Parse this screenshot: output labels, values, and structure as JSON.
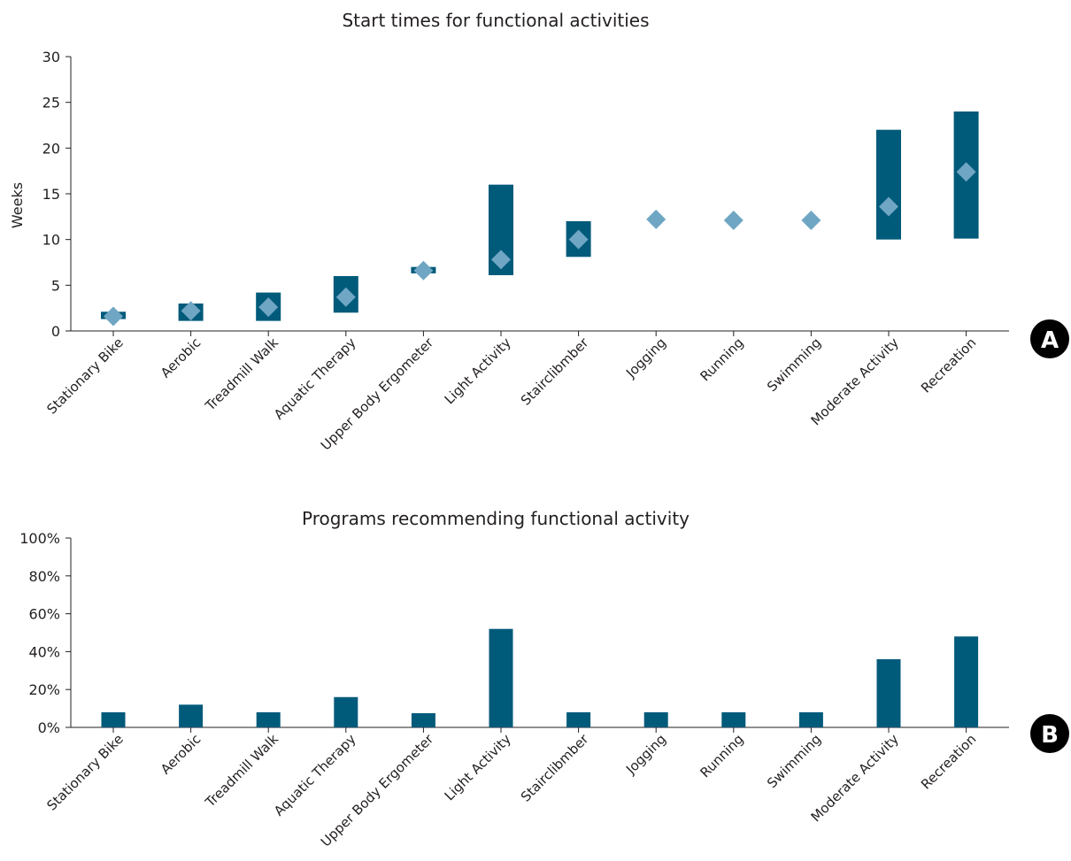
{
  "colors": {
    "bar": "#005a7a",
    "diamond": "#6fa6c4",
    "axis": "#231f20",
    "badge": "#000000"
  },
  "chart_data": [
    {
      "type": "range",
      "panel_label": "A",
      "title": "Start times for functional activities",
      "xlabel": "",
      "ylabel": "Weeks",
      "ylim": [
        0,
        30
      ],
      "yticks": [
        "0",
        "5",
        "10",
        "15",
        "20",
        "25",
        "30"
      ],
      "yticks_values": [
        0,
        5,
        10,
        15,
        20,
        25,
        30
      ],
      "categories": [
        "Stationary Bike",
        "Aerobic",
        "Treadmill Walk",
        "Aquatic Therapy",
        "Upper Body Ergometer",
        "Light Activity",
        "Stairclibmber",
        "Jogging",
        "Running",
        "Swimming",
        "Moderate Activity",
        "Recreation"
      ],
      "series": [
        {
          "name": "",
          "kind": "range",
          "low": [
            1.3,
            1.1,
            1.1,
            2.0,
            6.3,
            6.1,
            8.1,
            null,
            null,
            null,
            10.0,
            10.1
          ],
          "high": [
            2.1,
            3.0,
            4.2,
            6.0,
            7.0,
            16.0,
            12.0,
            null,
            null,
            null,
            22.0,
            24.0
          ]
        },
        {
          "name": "",
          "kind": "point",
          "values": [
            1.6,
            2.2,
            2.6,
            3.7,
            6.6,
            7.8,
            10.0,
            12.2,
            12.1,
            12.1,
            13.6,
            17.4
          ]
        }
      ],
      "grid": false,
      "legend": "none"
    },
    {
      "type": "bar",
      "panel_label": "B",
      "title": "Programs recommending functional activity",
      "xlabel": "",
      "ylabel": "",
      "ylim": [
        0,
        100
      ],
      "yticks": [
        "0%",
        "20%",
        "40%",
        "60%",
        "80%",
        "100%"
      ],
      "yticks_values": [
        0,
        20,
        40,
        60,
        80,
        100
      ],
      "categories": [
        "Stationary Bike",
        "Aerobic",
        "Treadmill Walk",
        "Aquatic Therapy",
        "Upper Body Ergometer",
        "Light Activity",
        "Stairclibmber",
        "Jogging",
        "Running",
        "Swimming",
        "Moderate Activity",
        "Recreation"
      ],
      "values": [
        8,
        12,
        8,
        16,
        7.5,
        52,
        8,
        8,
        8,
        8,
        36,
        48
      ],
      "grid": false,
      "legend": "none"
    }
  ]
}
